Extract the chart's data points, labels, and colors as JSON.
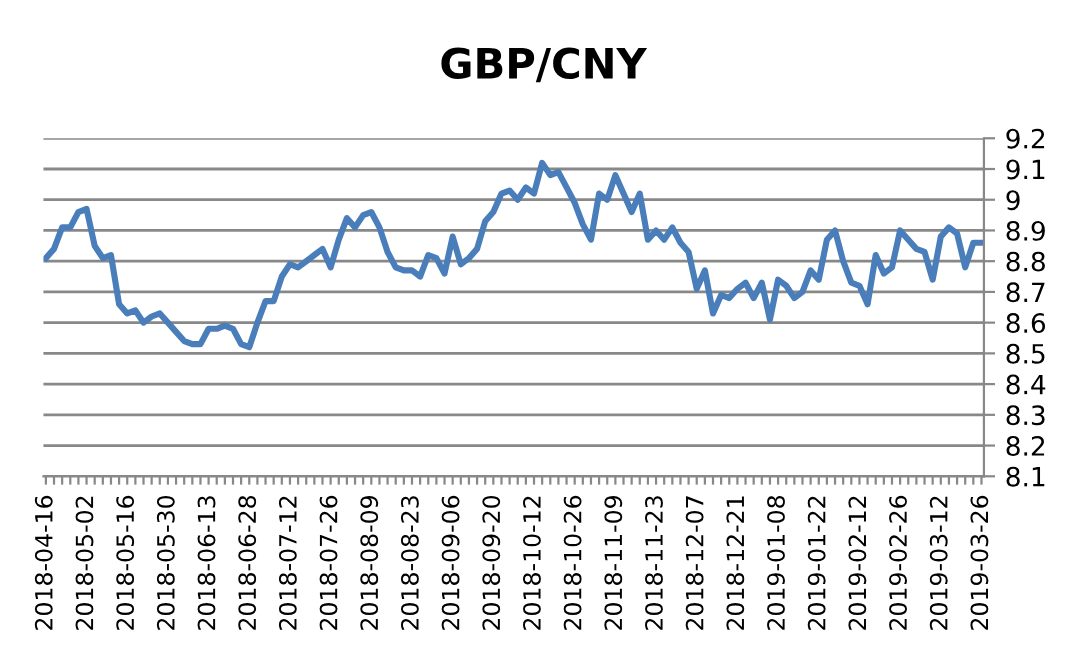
{
  "chart_data": {
    "type": "line",
    "title": "GBP/CNY",
    "categories": [
      "2018-04-16",
      null,
      null,
      null,
      null,
      "2018-05-02",
      null,
      null,
      null,
      null,
      "2018-05-16",
      null,
      null,
      null,
      null,
      "2018-05-30",
      null,
      null,
      null,
      null,
      "2018-06-13",
      null,
      null,
      null,
      null,
      "2018-06-28",
      null,
      null,
      null,
      null,
      "2018-07-12",
      null,
      null,
      null,
      null,
      "2018-07-26",
      null,
      null,
      null,
      null,
      "2018-08-09",
      null,
      null,
      null,
      null,
      "2018-08-23",
      null,
      null,
      null,
      null,
      "2018-09-06",
      null,
      null,
      null,
      null,
      "2018-09-20",
      null,
      null,
      null,
      null,
      "2018-10-12",
      null,
      null,
      null,
      null,
      "2018-10-26",
      null,
      null,
      null,
      null,
      "2018-11-09",
      null,
      null,
      null,
      null,
      "2018-11-23",
      null,
      null,
      null,
      null,
      "2018-12-07",
      null,
      null,
      null,
      null,
      "2018-12-21",
      null,
      null,
      null,
      null,
      "2019-01-08",
      null,
      null,
      null,
      null,
      "2019-01-22",
      null,
      null,
      null,
      null,
      "2019-02-12",
      null,
      null,
      null,
      null,
      "2019-02-26",
      null,
      null,
      null,
      null,
      "2019-03-12",
      null,
      null,
      null,
      null,
      "2019-03-26"
    ],
    "series": [
      {
        "color": "#4a7ebb",
        "values": [
          8.81,
          8.84,
          8.91,
          8.91,
          8.96,
          8.97,
          8.85,
          8.81,
          8.82,
          8.66,
          8.63,
          8.64,
          8.6,
          8.62,
          8.63,
          8.6,
          8.57,
          8.54,
          8.53,
          8.53,
          8.58,
          8.58,
          8.59,
          8.58,
          8.53,
          8.52,
          8.6,
          8.67,
          8.67,
          8.75,
          8.79,
          8.78,
          8.8,
          8.82,
          8.84,
          8.78,
          8.87,
          8.94,
          8.91,
          8.95,
          8.96,
          8.91,
          8.83,
          8.78,
          8.77,
          8.77,
          8.75,
          8.82,
          8.81,
          8.76,
          8.88,
          8.79,
          8.81,
          8.84,
          8.93,
          8.96,
          9.02,
          9.03,
          9.0,
          9.04,
          9.02,
          9.12,
          9.08,
          9.09,
          9.04,
          8.99,
          8.92,
          8.87,
          9.02,
          9.0,
          9.08,
          9.02,
          8.96,
          9.02,
          8.87,
          8.9,
          8.87,
          8.91,
          8.86,
          8.83,
          8.71,
          8.77,
          8.63,
          8.69,
          8.68,
          8.71,
          8.73,
          8.68,
          8.73,
          8.61,
          8.74,
          8.72,
          8.68,
          8.7,
          8.77,
          8.74,
          8.87,
          8.9,
          8.8,
          8.73,
          8.72,
          8.66,
          8.82,
          8.76,
          8.78,
          8.9,
          8.87,
          8.84,
          8.83,
          8.74,
          8.88,
          8.91,
          8.89,
          8.78,
          8.86,
          8.86
        ]
      }
    ],
    "ylim": [
      8.1,
      9.2
    ],
    "yticks": [
      8.1,
      8.2,
      8.3,
      8.4,
      8.5,
      8.6,
      8.7,
      8.8,
      8.9,
      9,
      9.1,
      9.2
    ],
    "grid": "y",
    "marker": "none",
    "line_style": "solid"
  }
}
